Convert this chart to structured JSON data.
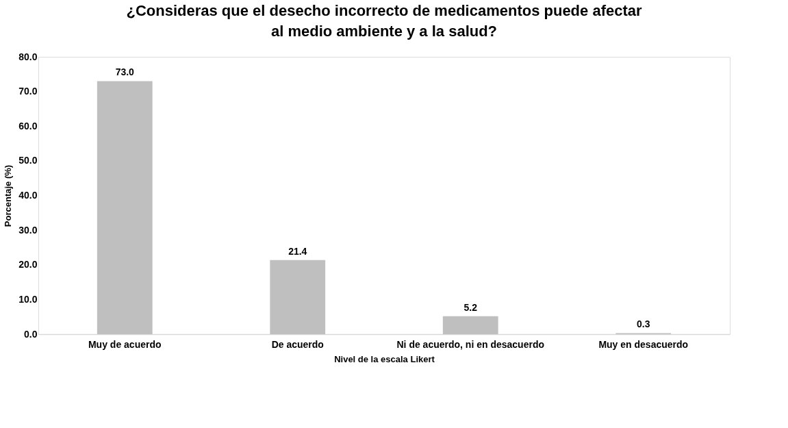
{
  "chart_data": {
    "type": "bar",
    "title": "¿Consideras que el desecho incorrecto de medicamentos puede afectar\nal medio ambiente y a la salud?",
    "xlabel": "Nivel de la escala Likert",
    "ylabel": "Porcentaje (%)",
    "categories": [
      "Muy de acuerdo",
      "De acuerdo",
      "Ni de acuerdo, ni en desacuerdo",
      "Muy en desacuerdo"
    ],
    "values": [
      73.0,
      21.4,
      5.2,
      0.3
    ],
    "value_labels": [
      "73.0",
      "21.4",
      "5.2",
      "0.3"
    ],
    "color": "#bfbfbf",
    "ylim": [
      0,
      80
    ],
    "yticks": [
      {
        "value": 0,
        "label": "0.0"
      },
      {
        "value": 10,
        "label": "10.0"
      },
      {
        "value": 20,
        "label": "20.0"
      },
      {
        "value": 30,
        "label": "30.0"
      },
      {
        "value": 40,
        "label": "40.0"
      },
      {
        "value": 50,
        "label": "50.0"
      },
      {
        "value": 60,
        "label": "60.0"
      },
      {
        "value": 70,
        "label": "70.0"
      },
      {
        "value": 80,
        "label": "80.0"
      }
    ],
    "grid": false
  }
}
